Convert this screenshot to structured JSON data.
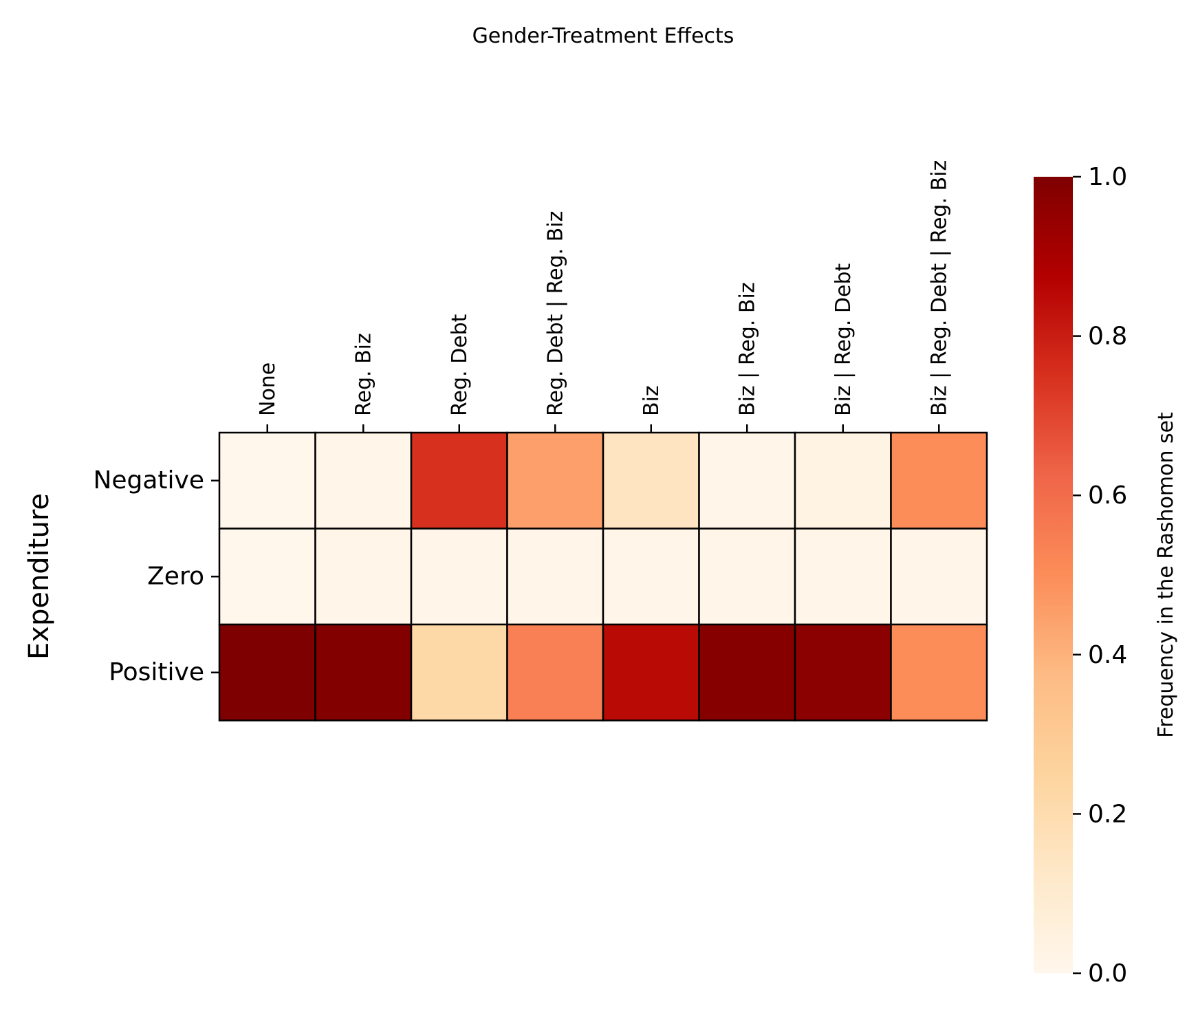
{
  "chart_data": {
    "type": "heatmap",
    "title": "Gender-Treatment Effects",
    "ylabel": "Expenditure",
    "xlabel": "",
    "columns": [
      "None",
      "Reg. Biz",
      "Reg. Debt",
      "Reg. Debt | Reg. Biz",
      "Biz",
      "Biz | Reg. Biz",
      "Biz | Reg. Debt",
      "Biz | Reg. Debt | Reg. Biz"
    ],
    "rows": [
      "Negative",
      "Zero",
      "Positive"
    ],
    "values": [
      [
        0.0,
        0.01,
        0.75,
        0.45,
        0.15,
        0.01,
        0.03,
        0.5
      ],
      [
        0.0,
        0.01,
        0.01,
        0.01,
        0.01,
        0.01,
        0.01,
        0.01
      ],
      [
        1.0,
        0.99,
        0.22,
        0.54,
        0.85,
        0.98,
        0.97,
        0.5
      ]
    ],
    "x_axis_position": "top",
    "colorbar": {
      "label": "Frequency in the Rashomon set",
      "range": [
        0,
        1
      ],
      "ticks": [
        "0.0",
        "0.2",
        "0.4",
        "0.6",
        "0.8",
        "1.0"
      ],
      "colormap": "OrRd"
    },
    "cell_edge_color": "#000000"
  }
}
